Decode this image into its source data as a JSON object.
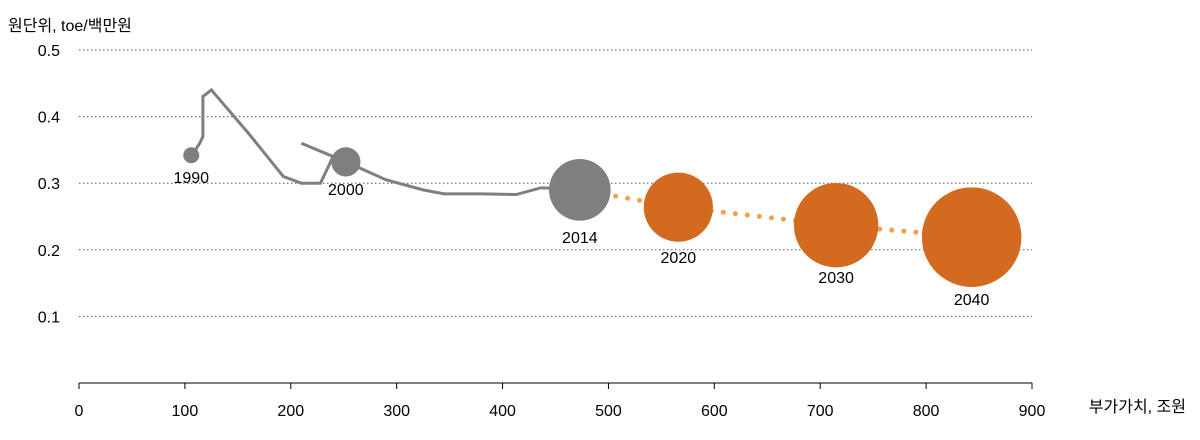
{
  "chart_data": {
    "type": "scatter",
    "title": "",
    "ylabel": "원단위, toe/백만원",
    "xlabel": "부가가치, 조원",
    "xlim": [
      0,
      900
    ],
    "ylim": [
      0,
      0.5
    ],
    "x_ticks": [
      "0",
      "100",
      "200",
      "300",
      "400",
      "500",
      "600",
      "700",
      "800",
      "900"
    ],
    "y_ticks": [
      "0.5",
      "0.4",
      "0.3",
      "0.2",
      "0.1"
    ],
    "grid": true,
    "colors": {
      "historical": "#7f7f7f",
      "projection": "#d26a20",
      "projection_line": "#f0a050",
      "grid": "#595959"
    },
    "historical_path": [
      [
        108,
        0.345
      ],
      [
        114,
        0.36
      ],
      [
        117,
        0.37
      ],
      [
        117,
        0.43
      ],
      [
        125,
        0.44
      ],
      [
        160,
        0.375
      ],
      [
        193,
        0.31
      ],
      [
        210,
        0.3
      ],
      [
        228,
        0.3
      ],
      [
        240,
        0.34
      ],
      [
        210,
        0.36
      ],
      [
        240,
        0.34
      ],
      [
        262,
        0.325
      ],
      [
        290,
        0.305
      ],
      [
        325,
        0.29
      ],
      [
        345,
        0.284
      ],
      [
        380,
        0.284
      ],
      [
        413,
        0.283
      ],
      [
        436,
        0.293
      ],
      [
        455,
        0.292
      ],
      [
        472,
        0.29
      ]
    ],
    "bubbles": [
      {
        "label": "1990",
        "x": 106,
        "y": 0.342,
        "size": 1,
        "series": "historical"
      },
      {
        "label": "2000",
        "x": 252,
        "y": 0.332,
        "size": 4.5,
        "series": "historical"
      },
      {
        "label": "2014",
        "x": 473,
        "y": 0.29,
        "size": 13,
        "series": "historical"
      },
      {
        "label": "2020",
        "x": 566,
        "y": 0.264,
        "size": 15,
        "series": "projection"
      },
      {
        "label": "2030",
        "x": 715,
        "y": 0.237,
        "size": 19,
        "series": "projection"
      },
      {
        "label": "2040",
        "x": 843,
        "y": 0.219,
        "size": 23,
        "series": "projection"
      }
    ],
    "projection_path": [
      [
        473,
        0.29
      ],
      [
        566,
        0.264
      ],
      [
        715,
        0.237
      ],
      [
        843,
        0.219
      ]
    ]
  }
}
